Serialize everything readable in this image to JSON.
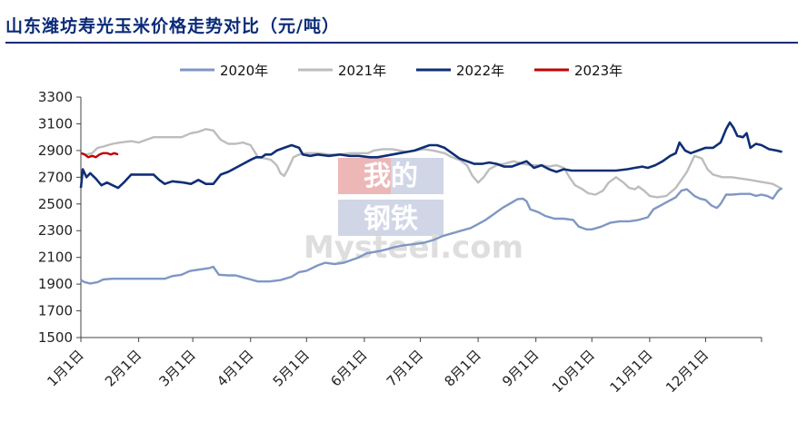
{
  "chart_data": {
    "type": "line",
    "title": "山东潍坊寿光玉米价格走势对比（元/吨）",
    "ylim": [
      1500,
      3300
    ],
    "yticks": [
      1500,
      1700,
      1900,
      2100,
      2300,
      2500,
      2700,
      2900,
      3100,
      3300
    ],
    "xlim": [
      1,
      366
    ],
    "xticks": [
      {
        "label": "1月1日",
        "day": 1
      },
      {
        "label": "2月1日",
        "day": 32
      },
      {
        "label": "3月1日",
        "day": 61
      },
      {
        "label": "4月1日",
        "day": 92
      },
      {
        "label": "5月1日",
        "day": 122
      },
      {
        "label": "6月1日",
        "day": 153
      },
      {
        "label": "7月1日",
        "day": 183
      },
      {
        "label": "8月1日",
        "day": 214
      },
      {
        "label": "9月1日",
        "day": 245
      },
      {
        "label": "10月1日",
        "day": 275
      },
      {
        "label": "11月1日",
        "day": 306
      },
      {
        "label": "12月1日",
        "day": 336
      }
    ],
    "legend_position": "top",
    "grid": false,
    "series": [
      {
        "name": "2020年",
        "color": "#7f97c4",
        "points": [
          [
            1,
            1930
          ],
          [
            3,
            1915
          ],
          [
            6,
            1905
          ],
          [
            10,
            1915
          ],
          [
            13,
            1935
          ],
          [
            18,
            1940
          ],
          [
            25,
            1940
          ],
          [
            35,
            1940
          ],
          [
            40,
            1940
          ],
          [
            46,
            1940
          ],
          [
            50,
            1960
          ],
          [
            55,
            1970
          ],
          [
            58,
            1990
          ],
          [
            60,
            2000
          ],
          [
            65,
            2010
          ],
          [
            70,
            2020
          ],
          [
            72,
            2030
          ],
          [
            75,
            1970
          ],
          [
            80,
            1965
          ],
          [
            84,
            1965
          ],
          [
            88,
            1950
          ],
          [
            92,
            1935
          ],
          [
            96,
            1920
          ],
          [
            102,
            1920
          ],
          [
            108,
            1930
          ],
          [
            114,
            1955
          ],
          [
            118,
            1990
          ],
          [
            122,
            2000
          ],
          [
            125,
            2020
          ],
          [
            128,
            2040
          ],
          [
            132,
            2060
          ],
          [
            137,
            2050
          ],
          [
            142,
            2060
          ],
          [
            146,
            2080
          ],
          [
            150,
            2100
          ],
          [
            154,
            2130
          ],
          [
            158,
            2140
          ],
          [
            162,
            2150
          ],
          [
            165,
            2160
          ],
          [
            170,
            2180
          ],
          [
            174,
            2190
          ],
          [
            180,
            2200
          ],
          [
            185,
            2210
          ],
          [
            190,
            2230
          ],
          [
            195,
            2260
          ],
          [
            200,
            2280
          ],
          [
            205,
            2300
          ],
          [
            210,
            2320
          ],
          [
            214,
            2350
          ],
          [
            218,
            2380
          ],
          [
            222,
            2420
          ],
          [
            227,
            2470
          ],
          [
            232,
            2510
          ],
          [
            235,
            2535
          ],
          [
            238,
            2540
          ],
          [
            240,
            2520
          ],
          [
            242,
            2460
          ],
          [
            246,
            2440
          ],
          [
            250,
            2410
          ],
          [
            255,
            2390
          ],
          [
            260,
            2390
          ],
          [
            265,
            2380
          ],
          [
            268,
            2330
          ],
          [
            272,
            2310
          ],
          [
            275,
            2310
          ],
          [
            280,
            2330
          ],
          [
            285,
            2360
          ],
          [
            290,
            2370
          ],
          [
            295,
            2370
          ],
          [
            300,
            2380
          ],
          [
            305,
            2400
          ],
          [
            308,
            2460
          ],
          [
            312,
            2490
          ],
          [
            316,
            2520
          ],
          [
            320,
            2550
          ],
          [
            323,
            2600
          ],
          [
            326,
            2610
          ],
          [
            330,
            2560
          ],
          [
            333,
            2540
          ],
          [
            336,
            2530
          ],
          [
            339,
            2490
          ],
          [
            342,
            2470
          ],
          [
            344,
            2500
          ],
          [
            347,
            2570
          ],
          [
            350,
            2570
          ],
          [
            355,
            2575
          ],
          [
            360,
            2575
          ],
          [
            363,
            2560
          ],
          [
            366,
            2570
          ],
          [
            369,
            2560
          ],
          [
            372,
            2540
          ],
          [
            375,
            2600
          ],
          [
            377,
            2620
          ]
        ]
      },
      {
        "name": "2021年",
        "color": "#bdbdbd",
        "points": [
          [
            1,
            2880
          ],
          [
            4,
            2870
          ],
          [
            7,
            2880
          ],
          [
            10,
            2920
          ],
          [
            13,
            2930
          ],
          [
            18,
            2950
          ],
          [
            22,
            2960
          ],
          [
            28,
            2970
          ],
          [
            32,
            2960
          ],
          [
            36,
            2980
          ],
          [
            40,
            3000
          ],
          [
            45,
            3000
          ],
          [
            50,
            3000
          ],
          [
            55,
            3000
          ],
          [
            60,
            3030
          ],
          [
            64,
            3040
          ],
          [
            68,
            3060
          ],
          [
            72,
            3050
          ],
          [
            76,
            2980
          ],
          [
            80,
            2950
          ],
          [
            84,
            2950
          ],
          [
            88,
            2960
          ],
          [
            92,
            2940
          ],
          [
            96,
            2850
          ],
          [
            100,
            2840
          ],
          [
            103,
            2830
          ],
          [
            106,
            2790
          ],
          [
            108,
            2730
          ],
          [
            110,
            2710
          ],
          [
            112,
            2760
          ],
          [
            115,
            2850
          ],
          [
            118,
            2870
          ],
          [
            122,
            2880
          ],
          [
            128,
            2880
          ],
          [
            134,
            2870
          ],
          [
            140,
            2870
          ],
          [
            146,
            2880
          ],
          [
            150,
            2880
          ],
          [
            155,
            2880
          ],
          [
            158,
            2900
          ],
          [
            163,
            2910
          ],
          [
            168,
            2910
          ],
          [
            172,
            2900
          ],
          [
            176,
            2890
          ],
          [
            180,
            2900
          ],
          [
            185,
            2910
          ],
          [
            190,
            2900
          ],
          [
            196,
            2880
          ],
          [
            200,
            2850
          ],
          [
            204,
            2830
          ],
          [
            208,
            2790
          ],
          [
            211,
            2710
          ],
          [
            214,
            2660
          ],
          [
            217,
            2700
          ],
          [
            220,
            2760
          ],
          [
            224,
            2790
          ],
          [
            228,
            2800
          ],
          [
            233,
            2820
          ],
          [
            238,
            2800
          ],
          [
            243,
            2790
          ],
          [
            248,
            2790
          ],
          [
            252,
            2780
          ],
          [
            256,
            2790
          ],
          [
            260,
            2770
          ],
          [
            263,
            2700
          ],
          [
            266,
            2640
          ],
          [
            270,
            2610
          ],
          [
            273,
            2580
          ],
          [
            277,
            2570
          ],
          [
            281,
            2600
          ],
          [
            284,
            2660
          ],
          [
            288,
            2700
          ],
          [
            292,
            2660
          ],
          [
            295,
            2620
          ],
          [
            298,
            2610
          ],
          [
            300,
            2630
          ],
          [
            303,
            2600
          ],
          [
            306,
            2560
          ],
          [
            310,
            2550
          ],
          [
            315,
            2560
          ],
          [
            320,
            2620
          ],
          [
            326,
            2740
          ],
          [
            330,
            2860
          ],
          [
            334,
            2840
          ],
          [
            337,
            2760
          ],
          [
            340,
            2720
          ],
          [
            345,
            2700
          ],
          [
            350,
            2700
          ],
          [
            355,
            2690
          ],
          [
            360,
            2680
          ],
          [
            364,
            2670
          ],
          [
            368,
            2660
          ],
          [
            372,
            2650
          ],
          [
            376,
            2620
          ]
        ]
      },
      {
        "name": "2022年",
        "color": "#0f2f75",
        "points": [
          [
            1,
            2620
          ],
          [
            2,
            2760
          ],
          [
            4,
            2700
          ],
          [
            6,
            2730
          ],
          [
            9,
            2690
          ],
          [
            12,
            2640
          ],
          [
            15,
            2660
          ],
          [
            18,
            2640
          ],
          [
            21,
            2620
          ],
          [
            24,
            2660
          ],
          [
            28,
            2720
          ],
          [
            36,
            2720
          ],
          [
            40,
            2720
          ],
          [
            43,
            2680
          ],
          [
            46,
            2650
          ],
          [
            50,
            2670
          ],
          [
            56,
            2660
          ],
          [
            60,
            2650
          ],
          [
            64,
            2680
          ],
          [
            68,
            2650
          ],
          [
            72,
            2650
          ],
          [
            76,
            2720
          ],
          [
            80,
            2740
          ],
          [
            84,
            2770
          ],
          [
            88,
            2800
          ],
          [
            92,
            2830
          ],
          [
            95,
            2850
          ],
          [
            98,
            2850
          ],
          [
            100,
            2870
          ],
          [
            103,
            2870
          ],
          [
            106,
            2900
          ],
          [
            110,
            2920
          ],
          [
            114,
            2940
          ],
          [
            118,
            2920
          ],
          [
            120,
            2870
          ],
          [
            124,
            2860
          ],
          [
            128,
            2870
          ],
          [
            134,
            2860
          ],
          [
            140,
            2870
          ],
          [
            145,
            2860
          ],
          [
            150,
            2860
          ],
          [
            156,
            2850
          ],
          [
            160,
            2850
          ],
          [
            164,
            2860
          ],
          [
            168,
            2870
          ],
          [
            172,
            2880
          ],
          [
            176,
            2890
          ],
          [
            180,
            2900
          ],
          [
            184,
            2920
          ],
          [
            188,
            2940
          ],
          [
            192,
            2940
          ],
          [
            196,
            2920
          ],
          [
            200,
            2880
          ],
          [
            204,
            2840
          ],
          [
            208,
            2820
          ],
          [
            212,
            2800
          ],
          [
            216,
            2800
          ],
          [
            220,
            2810
          ],
          [
            224,
            2800
          ],
          [
            228,
            2780
          ],
          [
            232,
            2780
          ],
          [
            236,
            2800
          ],
          [
            240,
            2820
          ],
          [
            244,
            2770
          ],
          [
            248,
            2790
          ],
          [
            252,
            2760
          ],
          [
            256,
            2740
          ],
          [
            260,
            2760
          ],
          [
            264,
            2750
          ],
          [
            270,
            2750
          ],
          [
            276,
            2750
          ],
          [
            282,
            2750
          ],
          [
            288,
            2750
          ],
          [
            294,
            2760
          ],
          [
            298,
            2770
          ],
          [
            302,
            2780
          ],
          [
            305,
            2770
          ],
          [
            309,
            2790
          ],
          [
            313,
            2820
          ],
          [
            317,
            2860
          ],
          [
            320,
            2880
          ],
          [
            322,
            2960
          ],
          [
            325,
            2900
          ],
          [
            328,
            2880
          ],
          [
            332,
            2900
          ],
          [
            336,
            2920
          ],
          [
            340,
            2920
          ],
          [
            344,
            2960
          ],
          [
            347,
            3060
          ],
          [
            349,
            3110
          ],
          [
            351,
            3070
          ],
          [
            353,
            3010
          ],
          [
            356,
            3000
          ],
          [
            358,
            3030
          ],
          [
            360,
            2920
          ],
          [
            363,
            2950
          ],
          [
            366,
            2940
          ],
          [
            370,
            2910
          ],
          [
            374,
            2900
          ],
          [
            377,
            2890
          ]
        ]
      },
      {
        "name": "2023年",
        "color": "#c00000",
        "points": [
          [
            1,
            2880
          ],
          [
            3,
            2870
          ],
          [
            5,
            2850
          ],
          [
            7,
            2860
          ],
          [
            9,
            2850
          ],
          [
            11,
            2870
          ],
          [
            13,
            2880
          ],
          [
            15,
            2880
          ],
          [
            17,
            2870
          ],
          [
            19,
            2880
          ],
          [
            21,
            2870
          ]
        ]
      }
    ]
  },
  "watermark": {
    "line1": "我的",
    "line2": "钢铁",
    "brand": "Mysteel.com"
  }
}
